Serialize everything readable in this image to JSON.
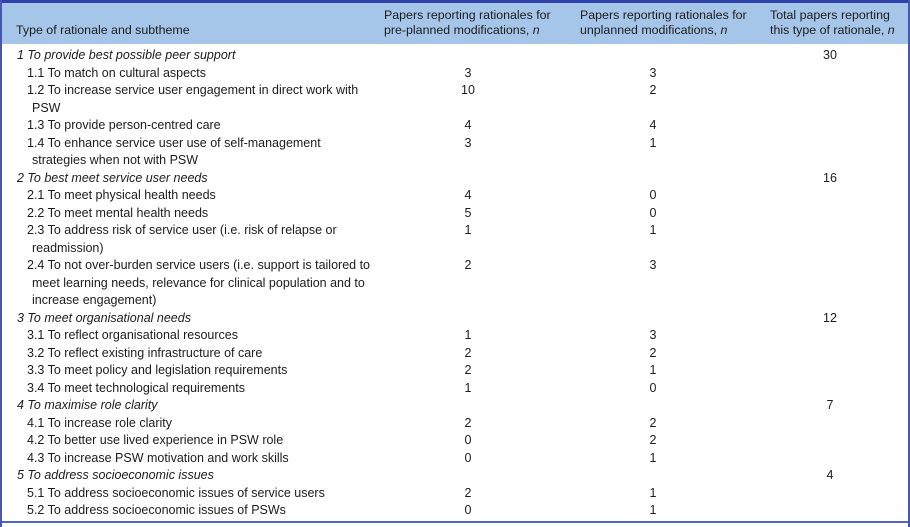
{
  "table": {
    "columns": [
      {
        "label": "Type of rationale and subtheme"
      },
      {
        "label": "Papers reporting rationales for pre-planned modifications, ",
        "n": "n"
      },
      {
        "label": "Papers reporting rationales for unplanned modifications, ",
        "n": "n"
      },
      {
        "label": "Total papers reporting this type of rationale, ",
        "n": "n"
      }
    ],
    "rows": [
      {
        "kind": "theme",
        "label": "1 To provide best possible peer support",
        "pre": "",
        "unplanned": "",
        "total": "30"
      },
      {
        "kind": "sub",
        "label": "1.1 To match on cultural aspects",
        "pre": "3",
        "unplanned": "3",
        "total": ""
      },
      {
        "kind": "sub",
        "label": "1.2 To increase service user engagement in direct work with PSW",
        "pre": "10",
        "unplanned": "2",
        "total": ""
      },
      {
        "kind": "sub",
        "label": "1.3 To provide person-centred care",
        "pre": "4",
        "unplanned": "4",
        "total": ""
      },
      {
        "kind": "sub",
        "label": "1.4 To enhance service user use of self-management strategies when not with PSW",
        "pre": "3",
        "unplanned": "1",
        "total": ""
      },
      {
        "kind": "theme",
        "label": "2 To best meet service user needs",
        "pre": "",
        "unplanned": "",
        "total": "16"
      },
      {
        "kind": "sub",
        "label": "2.1 To meet physical health needs",
        "pre": "4",
        "unplanned": "0",
        "total": ""
      },
      {
        "kind": "sub",
        "label": "2.2 To meet mental health needs",
        "pre": "5",
        "unplanned": "0",
        "total": ""
      },
      {
        "kind": "sub",
        "label": "2.3 To address risk of service user (i.e. risk of relapse or readmission)",
        "pre": "1",
        "unplanned": "1",
        "total": ""
      },
      {
        "kind": "sub",
        "label": "2.4 To not over-burden service users (i.e. support is tailored to meet learning needs, relevance for clinical population and to increase engagement)",
        "pre": "2",
        "unplanned": "3",
        "total": ""
      },
      {
        "kind": "theme",
        "label": "3 To meet organisational needs",
        "pre": "",
        "unplanned": "",
        "total": "12"
      },
      {
        "kind": "sub",
        "label": "3.1 To reflect organisational resources",
        "pre": "1",
        "unplanned": "3",
        "total": ""
      },
      {
        "kind": "sub",
        "label": "3.2 To reflect existing infrastructure of care",
        "pre": "2",
        "unplanned": "2",
        "total": ""
      },
      {
        "kind": "sub",
        "label": "3.3 To meet policy and legislation requirements",
        "pre": "2",
        "unplanned": "1",
        "total": ""
      },
      {
        "kind": "sub",
        "label": "3.4 To meet technological requirements",
        "pre": "1",
        "unplanned": "0",
        "total": ""
      },
      {
        "kind": "theme",
        "label": "4 To maximise role clarity",
        "pre": "",
        "unplanned": "",
        "total": "7"
      },
      {
        "kind": "sub",
        "label": "4.1 To increase role clarity",
        "pre": "2",
        "unplanned": "2",
        "total": ""
      },
      {
        "kind": "sub",
        "label": "4.2 To better use lived experience in PSW role",
        "pre": "0",
        "unplanned": "2",
        "total": ""
      },
      {
        "kind": "sub",
        "label": "4.3 To increase PSW motivation and work skills",
        "pre": "0",
        "unplanned": "1",
        "total": ""
      },
      {
        "kind": "theme",
        "label": "5 To address socioeconomic issues",
        "pre": "",
        "unplanned": "",
        "total": "4"
      },
      {
        "kind": "sub",
        "label": "5.1 To address socioeconomic issues of service users",
        "pre": "2",
        "unplanned": "1",
        "total": ""
      },
      {
        "kind": "sub",
        "label": "5.2 To address socioeconomic issues of PSWs",
        "pre": "0",
        "unplanned": "1",
        "total": ""
      }
    ]
  },
  "colors": {
    "header_fill": "#a6c6e9",
    "top_border": "#2f41a8",
    "side_border": "#4557b0",
    "bottom_rule": "#4d68bb",
    "text": "#1c1c1c"
  }
}
